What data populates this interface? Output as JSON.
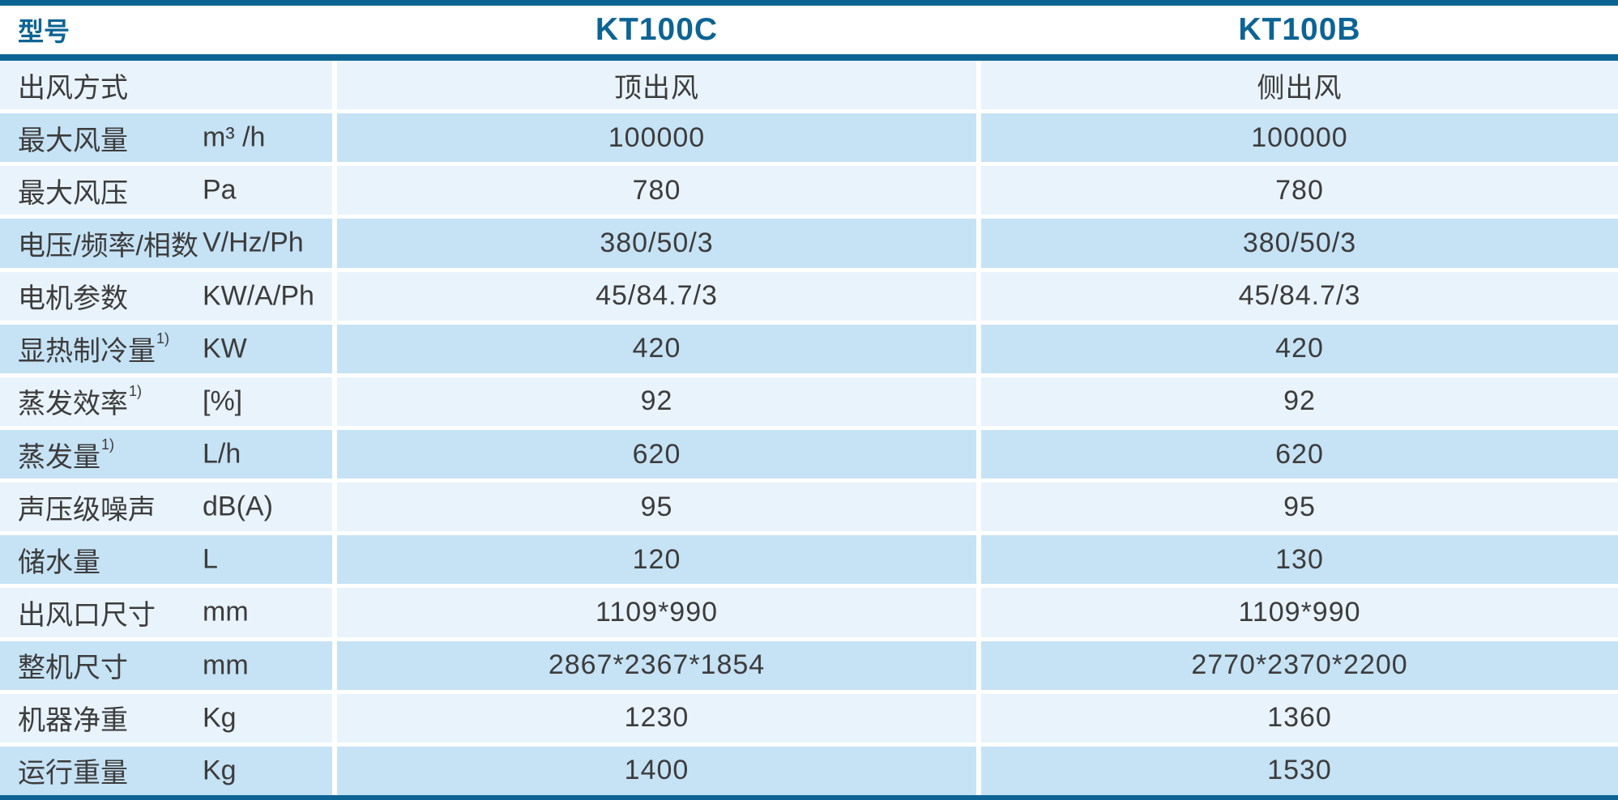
{
  "colors": {
    "accent": "#0d6494",
    "row_light": "#e9f3fc",
    "row_dark": "#c6e2f5",
    "text": "#3c3c3c"
  },
  "header": {
    "corner_label": "型号",
    "model_c": "KT100C",
    "model_b": "KT100B"
  },
  "rows": [
    {
      "label": "出风方式",
      "unit": "",
      "kt100c": "顶出风",
      "kt100b": "侧出风"
    },
    {
      "label": "最大风量",
      "unit": "m³ /h",
      "kt100c": "100000",
      "kt100b": "100000"
    },
    {
      "label": "最大风压",
      "unit": "Pa",
      "kt100c": "780",
      "kt100b": "780"
    },
    {
      "label": "电压/频率/相数",
      "unit": "V/Hz/Ph",
      "kt100c": "380/50/3",
      "kt100b": "380/50/3"
    },
    {
      "label": "电机参数",
      "unit": "KW/A/Ph",
      "kt100c": "45/84.7/3",
      "kt100b": "45/84.7/3"
    },
    {
      "label": "显热制冷量",
      "sup": "1)",
      "unit": "KW",
      "kt100c": "420",
      "kt100b": "420"
    },
    {
      "label": "蒸发效率",
      "sup": "1)",
      "unit": "[%]",
      "kt100c": "92",
      "kt100b": "92"
    },
    {
      "label": "蒸发量",
      "sup": "1)",
      "unit": "L/h",
      "kt100c": "620",
      "kt100b": "620"
    },
    {
      "label": "声压级噪声",
      "unit": "dB(A)",
      "kt100c": "95",
      "kt100b": "95"
    },
    {
      "label": "储水量",
      "unit": "L",
      "kt100c": "120",
      "kt100b": "130"
    },
    {
      "label": "出风口尺寸",
      "unit": "mm",
      "kt100c": "1109*990",
      "kt100b": "1109*990"
    },
    {
      "label": "整机尺寸",
      "unit": "mm",
      "kt100c": "2867*2367*1854",
      "kt100b": "2770*2370*2200"
    },
    {
      "label": "机器净重",
      "unit": "Kg",
      "kt100c": "1230",
      "kt100b": "1360"
    },
    {
      "label": "运行重量",
      "unit": "Kg",
      "kt100c": "1400",
      "kt100b": "1530"
    }
  ]
}
